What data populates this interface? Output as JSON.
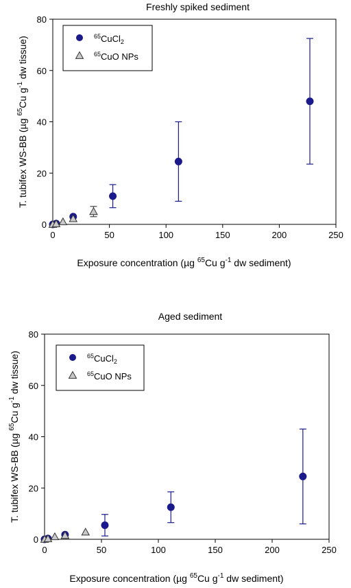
{
  "chart_data": [
    {
      "type": "scatter",
      "title": "Freshly spiked sediment",
      "xlabel": "Exposure concentration (µg 65Cu g-1 dw sediment)",
      "ylabel": "T. tubifex WS-BB (µg 65Cu g-1 dw tissue)",
      "xlim": [
        0,
        250
      ],
      "ylim": [
        0,
        80
      ],
      "x_ticks": [
        "0",
        "50",
        "100",
        "150",
        "200",
        "250"
      ],
      "y_ticks": [
        "0",
        "20",
        "40",
        "60",
        "80"
      ],
      "legend_position": "top-left",
      "grid": false,
      "series": [
        {
          "name": "65CuCl2",
          "marker": "circle",
          "color": "#1a1a8c",
          "points": [
            {
              "x": 0,
              "y": 0,
              "err": 0
            },
            {
              "x": 3,
              "y": 0.3,
              "err": 0
            },
            {
              "x": 18,
              "y": 3,
              "err": 0.5
            },
            {
              "x": 53,
              "y": 11,
              "err": 4.5
            },
            {
              "x": 111,
              "y": 24.5,
              "err": 15.5
            },
            {
              "x": 227,
              "y": 48,
              "err": 24.5
            }
          ]
        },
        {
          "name": "65CuO NPs",
          "marker": "triangle",
          "color": "#c8c8c8",
          "points": [
            {
              "x": 0,
              "y": 0,
              "err": 0
            },
            {
              "x": 3,
              "y": 0.2,
              "err": 0
            },
            {
              "x": 9,
              "y": 1,
              "err": 0.4
            },
            {
              "x": 18,
              "y": 2.2,
              "err": 0.6
            },
            {
              "x": 36,
              "y": 5,
              "err": 2
            }
          ]
        }
      ]
    },
    {
      "type": "scatter",
      "title": "Aged sediment",
      "xlabel": "Exposure concentration (µg 65Cu g-1 dw sediment)",
      "ylabel": "T. tubifex WS-BB (µg 65Cu g-1 dw tissue)",
      "xlim": [
        0,
        250
      ],
      "ylim": [
        0,
        80
      ],
      "x_ticks": [
        "0",
        "50",
        "100",
        "150",
        "200",
        "250"
      ],
      "y_ticks": [
        "0",
        "20",
        "40",
        "60",
        "80"
      ],
      "legend_position": "top-left",
      "grid": false,
      "series": [
        {
          "name": "65CuCl2",
          "marker": "circle",
          "color": "#1a1a8c",
          "points": [
            {
              "x": 0,
              "y": 0,
              "err": 0
            },
            {
              "x": 3,
              "y": 0.3,
              "err": 0
            },
            {
              "x": 18,
              "y": 1.8,
              "err": 0.4
            },
            {
              "x": 53,
              "y": 5.5,
              "err": 4.2
            },
            {
              "x": 111,
              "y": 12.5,
              "err": 6
            },
            {
              "x": 227,
              "y": 24.5,
              "err": 18.5
            }
          ]
        },
        {
          "name": "65CuO NPs",
          "marker": "triangle",
          "color": "#c8c8c8",
          "points": [
            {
              "x": 0,
              "y": 0,
              "err": 0
            },
            {
              "x": 3,
              "y": 0.2,
              "err": 0
            },
            {
              "x": 9,
              "y": 1,
              "err": 0.4
            },
            {
              "x": 18,
              "y": 1.5,
              "err": 0.5
            },
            {
              "x": 36,
              "y": 2.8,
              "err": 1.2
            }
          ]
        }
      ]
    }
  ]
}
